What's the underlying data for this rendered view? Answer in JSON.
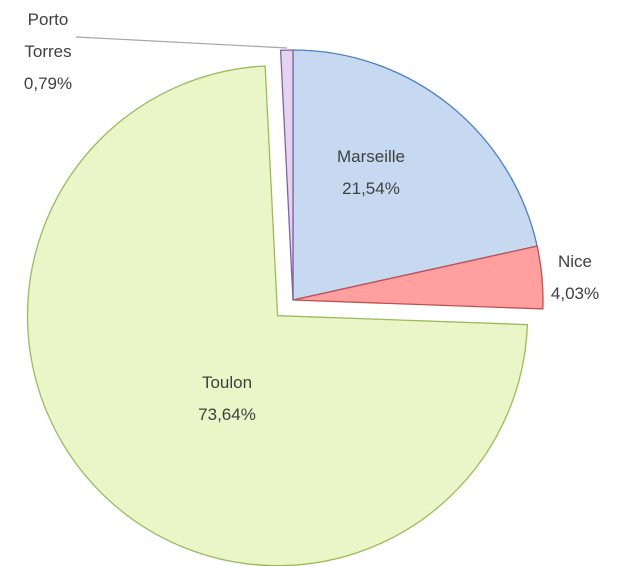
{
  "chart_data": {
    "type": "pie",
    "categories": [
      "Marseille",
      "Nice",
      "Toulon",
      "Porto Torres"
    ],
    "values": [
      21.54,
      4.03,
      73.64,
      0.79
    ],
    "value_labels": [
      "21,54%",
      "4,03%",
      "73,64%",
      "0,79%"
    ],
    "colors": [
      "#c6d9f1",
      "#ff9f9f",
      "#ebf6c8",
      "#e4d4f2"
    ],
    "strokes": [
      "#4f81bd",
      "#c0504d",
      "#9bbb59",
      "#8064a2"
    ],
    "explode": [
      false,
      false,
      true,
      false
    ]
  }
}
